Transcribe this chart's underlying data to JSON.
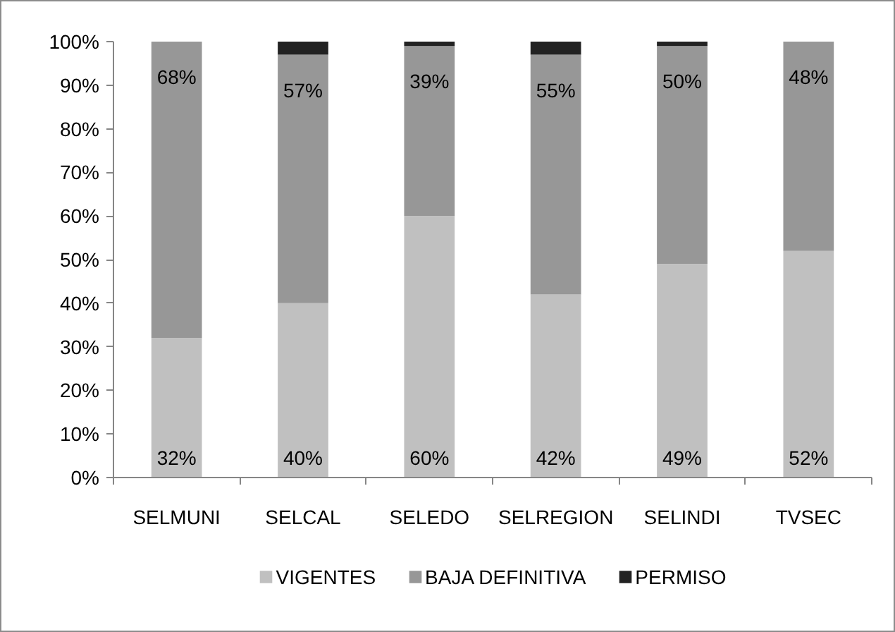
{
  "chart_data": {
    "type": "bar",
    "stacked": true,
    "categories": [
      "SELMUNI",
      "SELCAL",
      "SELEDO",
      "SELREGION",
      "SELINDI",
      "TVSEC"
    ],
    "series": [
      {
        "name": "VIGENTES",
        "color": "#c0c0c0",
        "values": [
          32,
          40,
          60,
          42,
          49,
          52
        ],
        "value_labels": [
          "32%",
          "40%",
          "60%",
          "42%",
          "49%",
          "52%"
        ]
      },
      {
        "name": "BAJA DEFINITIVA",
        "color": "#979797",
        "values": [
          68,
          57,
          39,
          55,
          50,
          48
        ],
        "value_labels": [
          "68%",
          "57%",
          "39%",
          "55%",
          "50%",
          "48%"
        ]
      },
      {
        "name": "PERMISO",
        "color": "#222222",
        "values": [
          0,
          3,
          1,
          3,
          1,
          0
        ]
      }
    ],
    "ylim": [
      0,
      100
    ],
    "yticks": [
      {
        "value": 0,
        "label": "0%"
      },
      {
        "value": 10,
        "label": "10%"
      },
      {
        "value": 20,
        "label": "20%"
      },
      {
        "value": 30,
        "label": "30%"
      },
      {
        "value": 40,
        "label": "40%"
      },
      {
        "value": 50,
        "label": "50%"
      },
      {
        "value": 60,
        "label": "60%"
      },
      {
        "value": 70,
        "label": "70%"
      },
      {
        "value": 80,
        "label": "80%"
      },
      {
        "value": 90,
        "label": "90%"
      },
      {
        "value": 100,
        "label": "100%"
      }
    ],
    "legend": "bottom"
  }
}
